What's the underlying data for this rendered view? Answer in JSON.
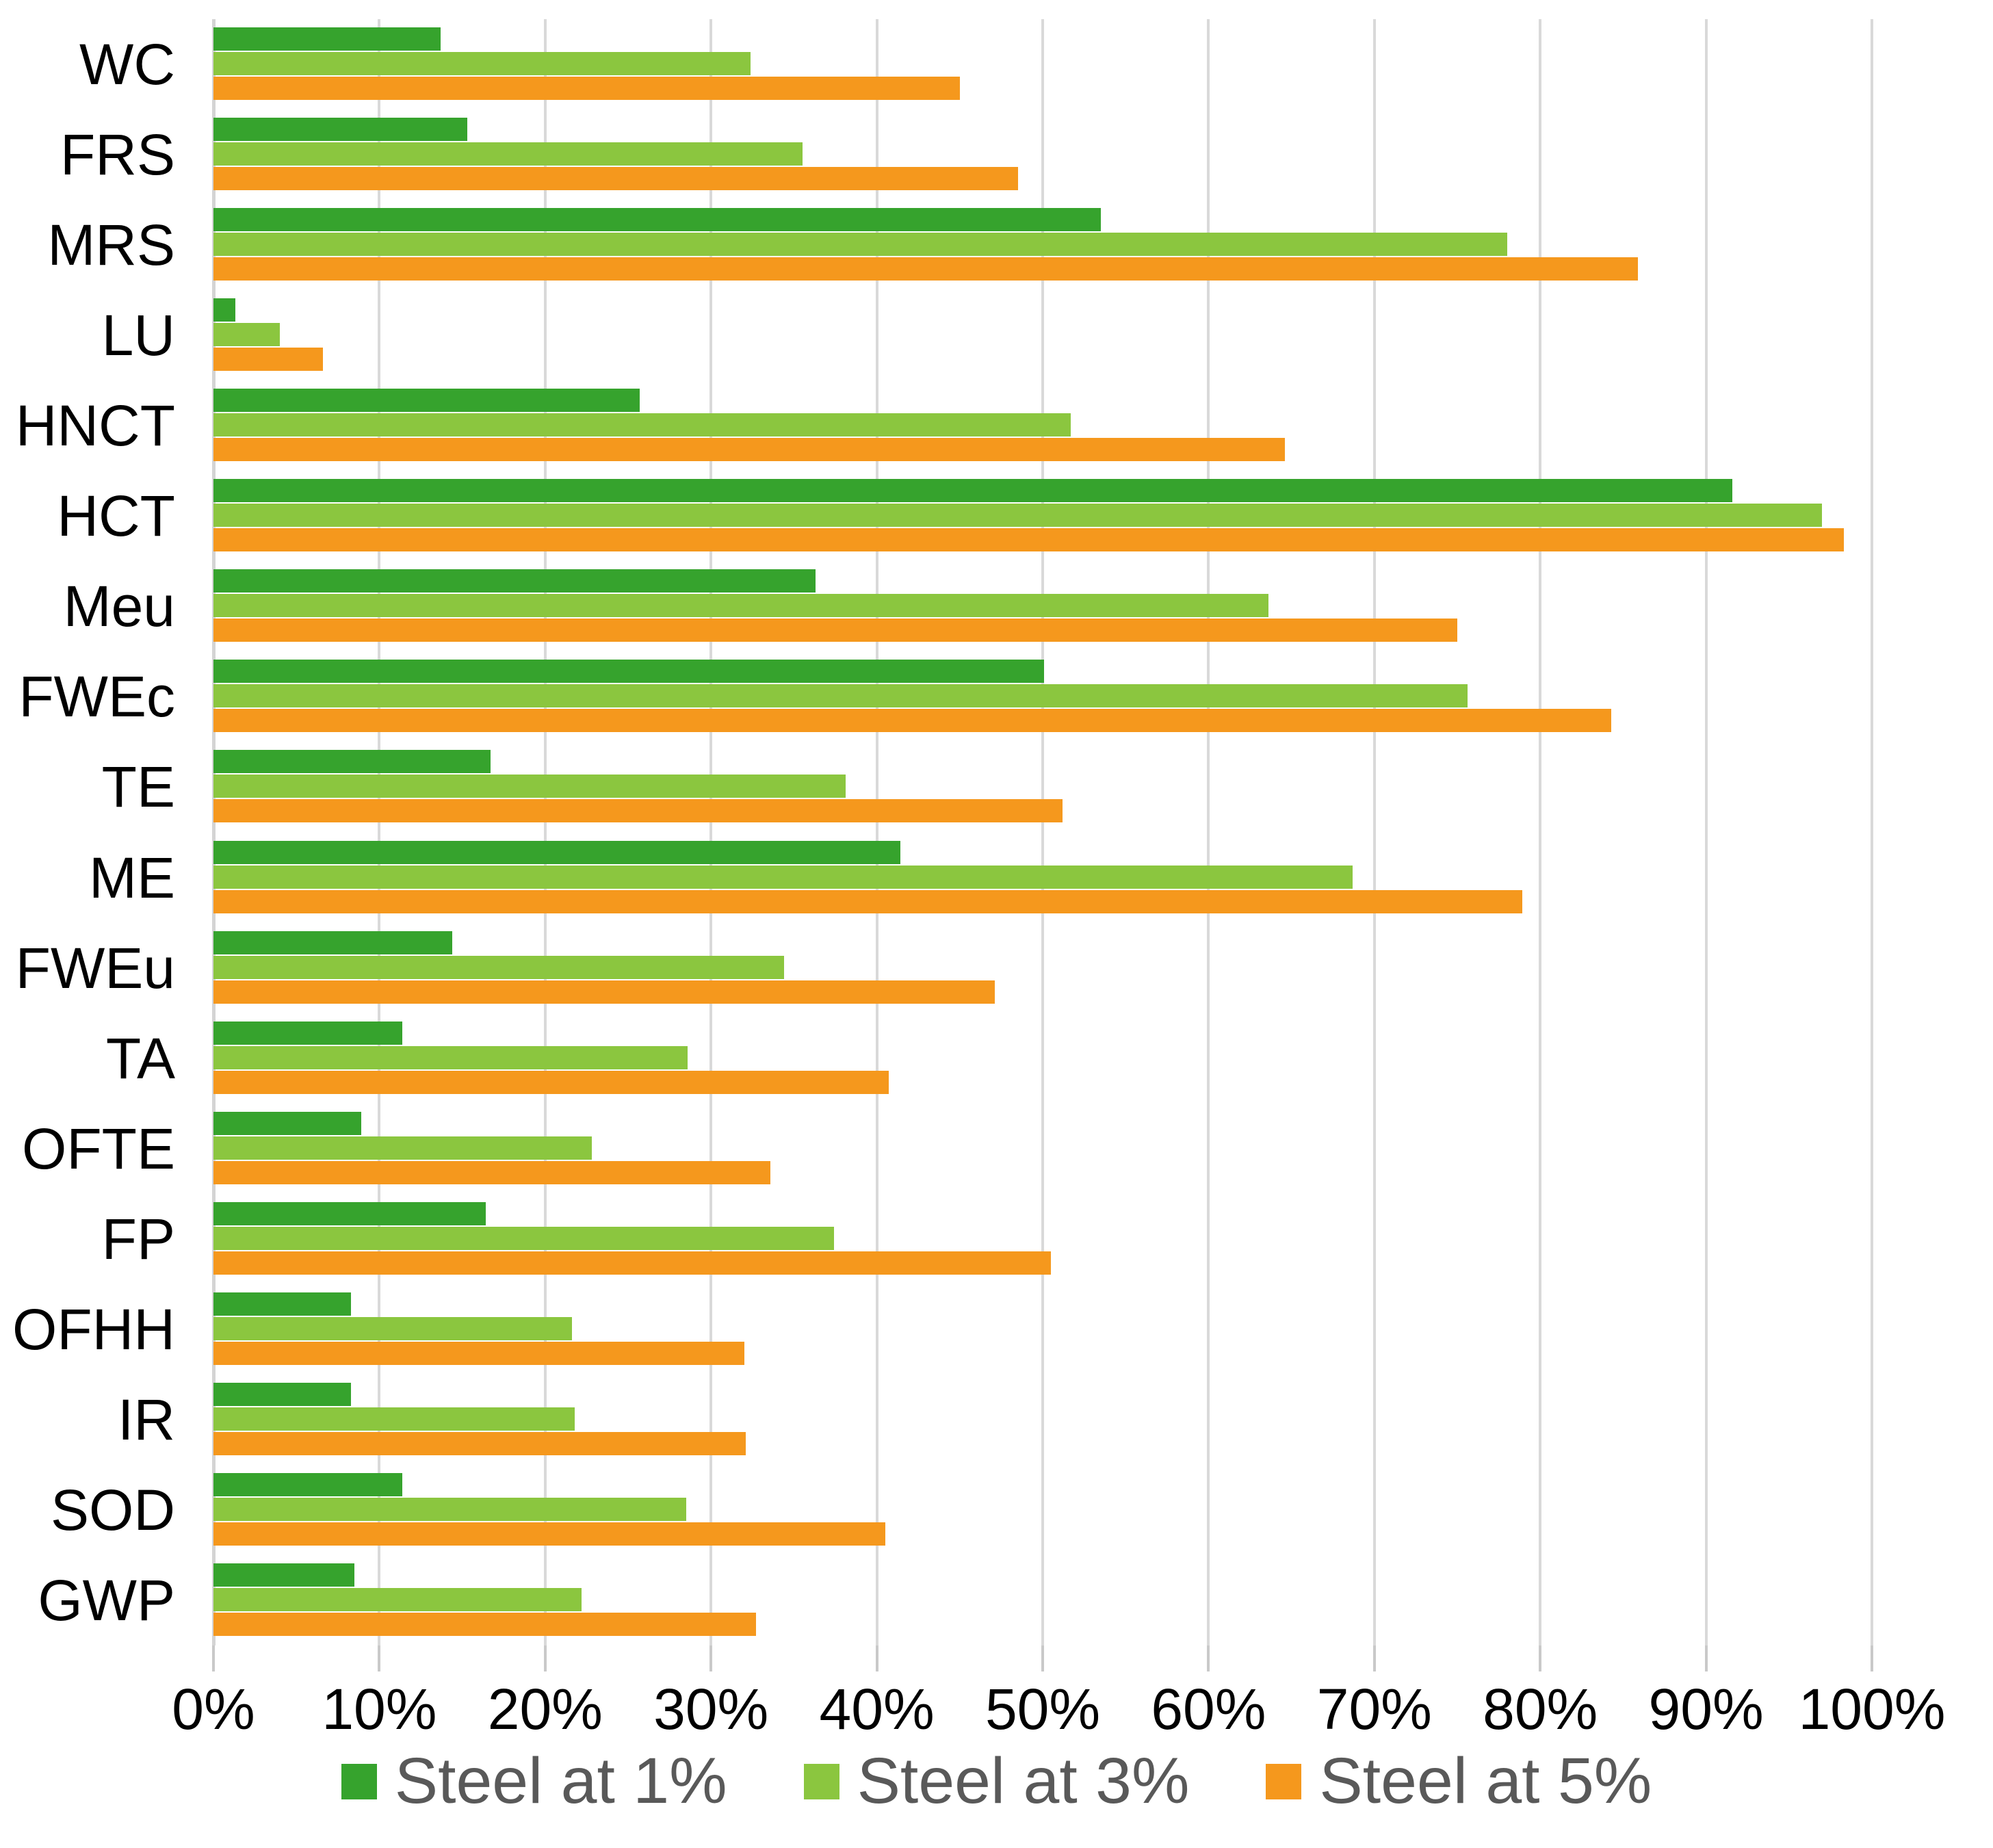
{
  "chart_data": {
    "type": "bar",
    "orientation": "horizontal",
    "title": "",
    "xlabel": "",
    "ylabel": "",
    "grid": true,
    "legend_position": "bottom",
    "x_axis": {
      "min": 0,
      "max": 100,
      "tick_step": 10,
      "tick_labels": [
        "0%",
        "10%",
        "20%",
        "30%",
        "40%",
        "50%",
        "60%",
        "70%",
        "80%",
        "90%",
        "100%"
      ]
    },
    "categories": [
      "WC",
      "FRS",
      "MRS",
      "LU",
      "HNCT",
      "HCT",
      "Meu",
      "FWEc",
      "TE",
      "ME",
      "FWEu",
      "TA",
      "OFTE",
      "FP",
      "OFHH",
      "IR",
      "SOD",
      "GWP"
    ],
    "series": [
      {
        "name": "Steel at 1%",
        "color": "#36a32d",
        "values": [
          13.7,
          15.3,
          53.5,
          1.3,
          25.7,
          91.6,
          36.3,
          50.1,
          16.7,
          41.4,
          14.4,
          11.4,
          8.9,
          16.4,
          8.3,
          8.3,
          11.4,
          8.5
        ]
      },
      {
        "name": "Steel at 3%",
        "color": "#8bc63f",
        "values": [
          32.4,
          35.5,
          78.0,
          4.0,
          51.7,
          97.0,
          63.6,
          75.6,
          38.1,
          68.7,
          34.4,
          28.6,
          22.8,
          37.4,
          21.6,
          21.8,
          28.5,
          22.2
        ]
      },
      {
        "name": "Steel at 5%",
        "color": "#f5981d",
        "values": [
          45.0,
          48.5,
          85.9,
          6.6,
          64.6,
          98.3,
          75.0,
          84.3,
          51.2,
          78.9,
          47.1,
          40.7,
          33.6,
          50.5,
          32.0,
          32.1,
          40.5,
          32.7
        ]
      }
    ]
  },
  "styles": {
    "gridline_color": "#d9d9d9",
    "tick_color": "#c9c9c9",
    "axis_text_color": "#000000",
    "legend_text_color": "#595959",
    "background": "#ffffff"
  }
}
